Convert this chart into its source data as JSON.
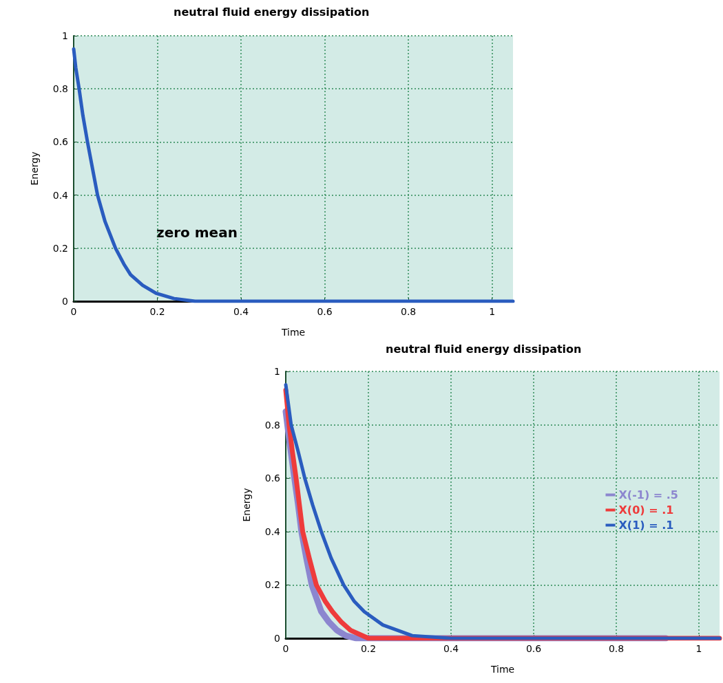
{
  "chart_data": [
    {
      "type": "line",
      "title": "neutral fluid energy dissipation",
      "xlabel": "Time",
      "ylabel": "Energy",
      "annotations": [
        "zero mean"
      ],
      "series": [
        {
          "color": "#2a5cbf",
          "x": [
            0,
            0.005,
            0.013,
            0.022,
            0.033,
            0.045,
            0.057,
            0.075,
            0.1,
            0.12,
            0.136,
            0.165,
            0.197,
            0.24,
            0.29,
            0.5,
            0.8,
            1.05
          ],
          "values": [
            0.95,
            0.88,
            0.8,
            0.7,
            0.6,
            0.5,
            0.4,
            0.3,
            0.2,
            0.14,
            0.1,
            0.06,
            0.03,
            0.01,
            0,
            0,
            0,
            0
          ]
        }
      ],
      "xlim": [
        0,
        1.05
      ],
      "ylim": [
        0,
        1
      ],
      "xticks": [
        0,
        0.2,
        0.4,
        0.6,
        0.8,
        1
      ],
      "yticks": [
        0,
        0.2,
        0.4,
        0.6,
        0.8,
        1
      ],
      "grid": true,
      "legend": false
    },
    {
      "type": "line",
      "title": "neutral fluid energy dissipation",
      "xlabel": "Time",
      "ylabel": "Energy",
      "series": [
        {
          "name": "X(-1) = .5",
          "color": "#8c86cf",
          "x": [
            0,
            0.008,
            0.021,
            0.03,
            0.038,
            0.05,
            0.063,
            0.086,
            0.105,
            0.124,
            0.145,
            0.17,
            0.4,
            0.7,
            0.92
          ],
          "values": [
            0.85,
            0.75,
            0.6,
            0.5,
            0.4,
            0.3,
            0.2,
            0.1,
            0.06,
            0.03,
            0.01,
            0,
            0,
            0,
            0
          ]
        },
        {
          "name": "X(0) = .1",
          "color": "#ee3b3b",
          "x": [
            0,
            0.008,
            0.016,
            0.025,
            0.033,
            0.041,
            0.057,
            0.074,
            0.095,
            0.113,
            0.135,
            0.157,
            0.2,
            0.5,
            0.8,
            1.05
          ],
          "values": [
            0.93,
            0.8,
            0.7,
            0.6,
            0.5,
            0.4,
            0.3,
            0.2,
            0.14,
            0.1,
            0.06,
            0.03,
            0,
            0,
            0,
            0
          ]
        },
        {
          "name": "X(1) = .1",
          "color": "#2a5cbf",
          "x": [
            0,
            0.013,
            0.03,
            0.046,
            0.065,
            0.086,
            0.11,
            0.14,
            0.165,
            0.19,
            0.235,
            0.306,
            0.4,
            0.7,
            1.05
          ],
          "values": [
            0.95,
            0.8,
            0.7,
            0.6,
            0.5,
            0.4,
            0.3,
            0.2,
            0.14,
            0.1,
            0.05,
            0.01,
            0,
            0,
            0
          ]
        }
      ],
      "xlim": [
        0,
        1.05
      ],
      "ylim": [
        0,
        1
      ],
      "xticks": [
        0,
        0.2,
        0.4,
        0.6,
        0.8,
        1
      ],
      "yticks": [
        0,
        0.2,
        0.4,
        0.6,
        0.8,
        1
      ],
      "grid": true,
      "legend": "right"
    }
  ]
}
